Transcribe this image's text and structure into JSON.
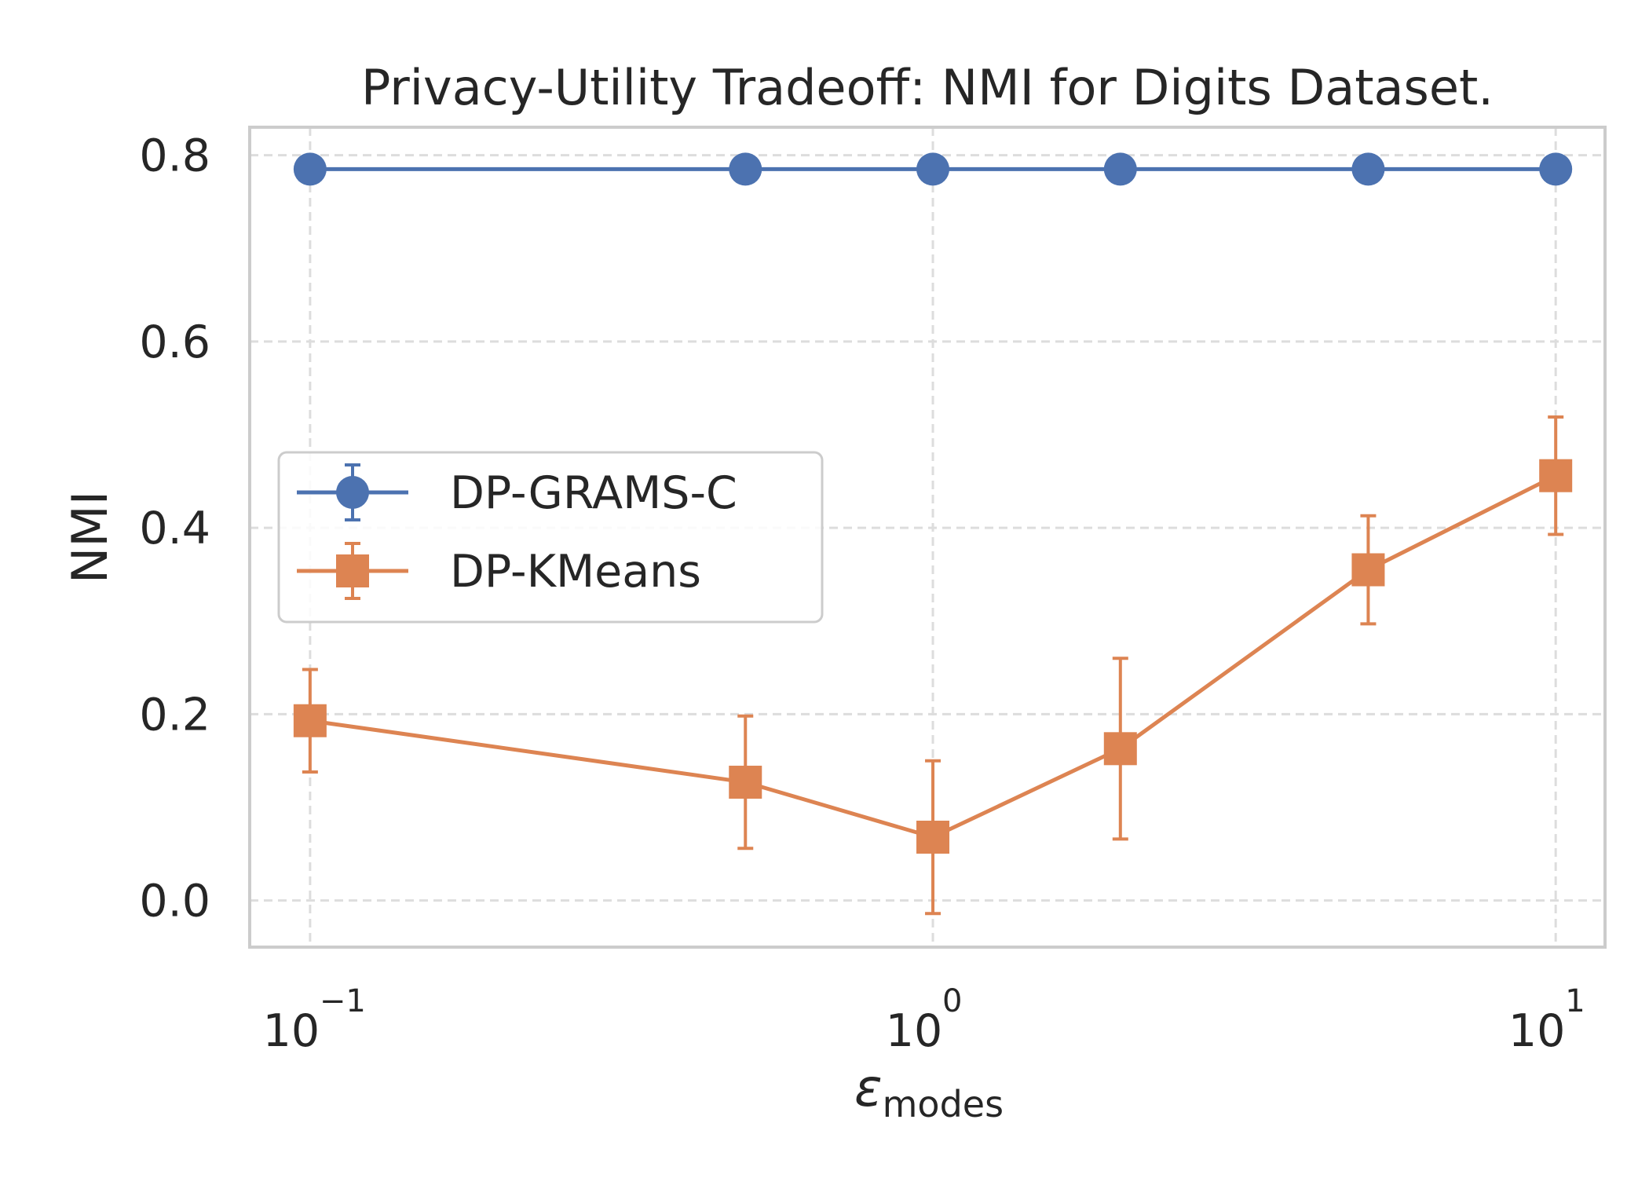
{
  "chart_data": {
    "type": "line",
    "title": "Privacy-Utility Tradeoff: NMI for Digits Dataset.",
    "xlabel": {
      "symbol": "ε",
      "subscript": "modes"
    },
    "ylabel": "NMI",
    "x_scale": "log",
    "xlim": [
      0.08,
      12
    ],
    "ylim": [
      -0.05,
      0.83
    ],
    "x_ticks": [
      {
        "value": 0.1,
        "base": "10",
        "exp": "−1"
      },
      {
        "value": 1,
        "base": "10",
        "exp": "0"
      },
      {
        "value": 10,
        "base": "10",
        "exp": "1"
      }
    ],
    "y_ticks": [
      {
        "value": 0.0,
        "label": "0.0"
      },
      {
        "value": 0.2,
        "label": "0.2"
      },
      {
        "value": 0.4,
        "label": "0.4"
      },
      {
        "value": 0.6,
        "label": "0.6"
      },
      {
        "value": 0.8,
        "label": "0.8"
      }
    ],
    "grid": true,
    "legend_position": "center-left",
    "x": [
      0.1,
      0.5,
      1,
      2,
      5,
      10
    ],
    "series": [
      {
        "name": "DP-GRAMS-C",
        "color": "#4c72b0",
        "marker": "circle",
        "values": [
          0.785,
          0.785,
          0.785,
          0.785,
          0.785,
          0.785
        ],
        "errors": [
          0,
          0,
          0,
          0,
          0,
          0
        ]
      },
      {
        "name": "DP-KMeans",
        "color": "#dd8452",
        "marker": "square",
        "values": [
          0.193,
          0.127,
          0.068,
          0.163,
          0.355,
          0.456
        ],
        "errors": [
          0.055,
          0.071,
          0.082,
          0.097,
          0.058,
          0.063
        ]
      }
    ]
  }
}
